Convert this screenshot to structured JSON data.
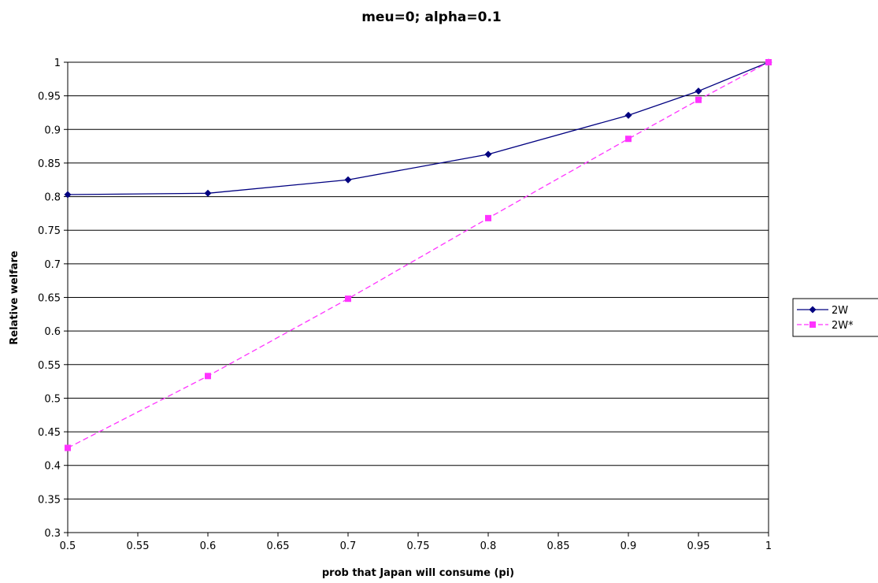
{
  "chart_data": {
    "type": "line",
    "title": "meu=0; alpha=0.1",
    "xlabel": "prob that Japan will consume (pi)",
    "ylabel": "Relative welfare",
    "xlim": [
      0.5,
      1
    ],
    "ylim": [
      0.3,
      1
    ],
    "xticks": [
      0.5,
      0.55,
      0.6,
      0.65,
      0.7,
      0.75,
      0.8,
      0.85,
      0.9,
      0.95,
      1
    ],
    "xtick_labels": [
      "0.5",
      "0.55",
      "0.6",
      "0.65",
      "0.7",
      "0.75",
      "0.8",
      "0.85",
      "0.9",
      "0.95",
      "1"
    ],
    "yticks": [
      0.3,
      0.35,
      0.4,
      0.45,
      0.5,
      0.55,
      0.6,
      0.65,
      0.7,
      0.75,
      0.8,
      0.85,
      0.9,
      0.95,
      1
    ],
    "ytick_labels": [
      "0.3",
      "0.35",
      "0.4",
      "0.45",
      "0.5",
      "0.55",
      "0.6",
      "0.65",
      "0.7",
      "0.75",
      "0.8",
      "0.85",
      "0.9",
      "0.95",
      "1"
    ],
    "grid": "horizontal",
    "legend_position": "right",
    "series": [
      {
        "name": "2W",
        "color": "#000080",
        "line_style": "solid",
        "marker": "diamond",
        "x": [
          0.5,
          0.6,
          0.7,
          0.8,
          0.9,
          0.95,
          1
        ],
        "y": [
          0.803,
          0.805,
          0.825,
          0.863,
          0.921,
          0.957,
          1.0
        ]
      },
      {
        "name": "2W*",
        "color": "#ff33ff",
        "line_style": "dashed",
        "marker": "square",
        "x": [
          0.5,
          0.6,
          0.7,
          0.8,
          0.9,
          0.95,
          1
        ],
        "y": [
          0.426,
          0.533,
          0.648,
          0.768,
          0.886,
          0.944,
          1.0
        ]
      }
    ]
  }
}
